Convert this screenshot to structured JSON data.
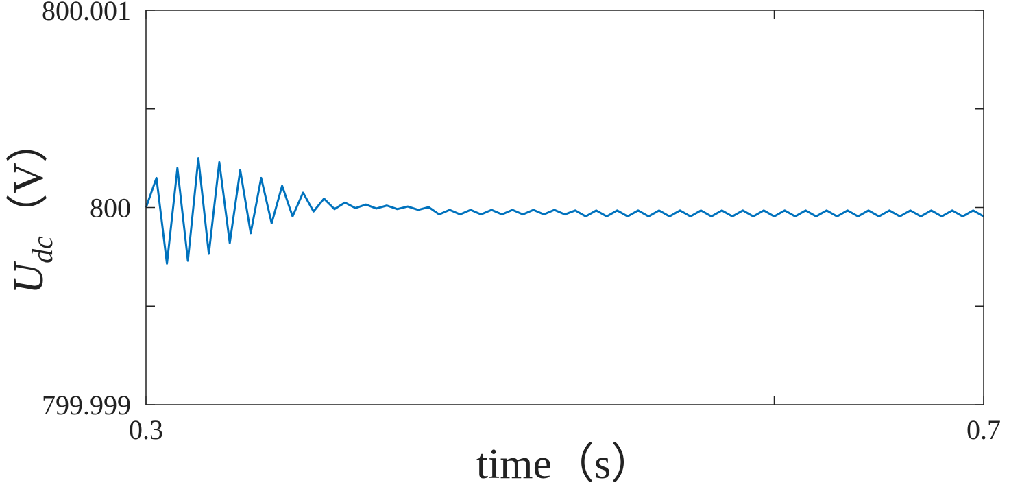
{
  "chart_data": {
    "type": "line",
    "xlabel": "time（s）",
    "ylabel": {
      "symbol": "U",
      "subscript": "dc",
      "unit": "（V）"
    },
    "x": [
      0.3,
      0.305,
      0.31,
      0.315,
      0.32,
      0.325,
      0.33,
      0.335,
      0.34,
      0.345,
      0.35,
      0.355,
      0.36,
      0.365,
      0.37,
      0.375,
      0.38,
      0.385,
      0.39,
      0.395,
      0.4,
      0.405,
      0.41,
      0.415,
      0.42,
      0.425,
      0.43,
      0.435,
      0.44,
      0.445,
      0.45,
      0.455,
      0.46,
      0.465,
      0.47,
      0.475,
      0.48,
      0.485,
      0.49,
      0.495,
      0.5,
      0.505,
      0.51,
      0.515,
      0.52,
      0.525,
      0.53,
      0.535,
      0.54,
      0.545,
      0.55,
      0.555,
      0.56,
      0.565,
      0.57,
      0.575,
      0.58,
      0.585,
      0.59,
      0.595,
      0.6,
      0.605,
      0.61,
      0.615,
      0.62,
      0.625,
      0.63,
      0.635,
      0.64,
      0.645,
      0.65,
      0.655,
      0.66,
      0.665,
      0.67,
      0.675,
      0.68,
      0.685,
      0.69,
      0.695,
      0.7
    ],
    "series": [
      {
        "color": "#0072bd",
        "values": [
          800,
          800.00015,
          799.999715,
          800.0002,
          799.99973,
          800.00025,
          799.999765,
          800.00023,
          799.99982,
          800.00019,
          799.99987,
          800.00015,
          799.99992,
          800.00011,
          799.999955,
          800.000075,
          799.99998,
          800.000045,
          799.999992,
          800.000025,
          799.999997,
          800.000015,
          799.999995,
          800.00001,
          799.999992,
          800.000005,
          799.999988,
          800.000002,
          799.999965,
          799.999988,
          799.999965,
          799.999988,
          799.999965,
          799.999988,
          799.999965,
          799.999988,
          799.999965,
          799.999988,
          799.999965,
          799.999988,
          799.999965,
          799.999985,
          799.999955,
          799.999985,
          799.999955,
          799.999985,
          799.999955,
          799.999985,
          799.999955,
          799.999985,
          799.999955,
          799.999985,
          799.999955,
          799.999985,
          799.999955,
          799.999985,
          799.999955,
          799.999985,
          799.999955,
          799.999985,
          799.999955,
          799.999985,
          799.999955,
          799.999985,
          799.999955,
          799.999985,
          799.999955,
          799.999985,
          799.999955,
          799.999985,
          799.999955,
          799.999985,
          799.999955,
          799.999985,
          799.999955,
          799.999985,
          799.999955,
          799.999985,
          799.999955,
          799.999985,
          799.999955
        ]
      }
    ],
    "xlim": [
      0.3,
      0.7
    ],
    "xticks": [
      0.3,
      0.7
    ],
    "xticks_minor": [
      0.6
    ],
    "ylim": [
      799.999,
      800.001
    ],
    "yticks": [
      799.999,
      800,
      800.001
    ],
    "yticks_minor": [
      799.9995,
      800.0005
    ]
  }
}
